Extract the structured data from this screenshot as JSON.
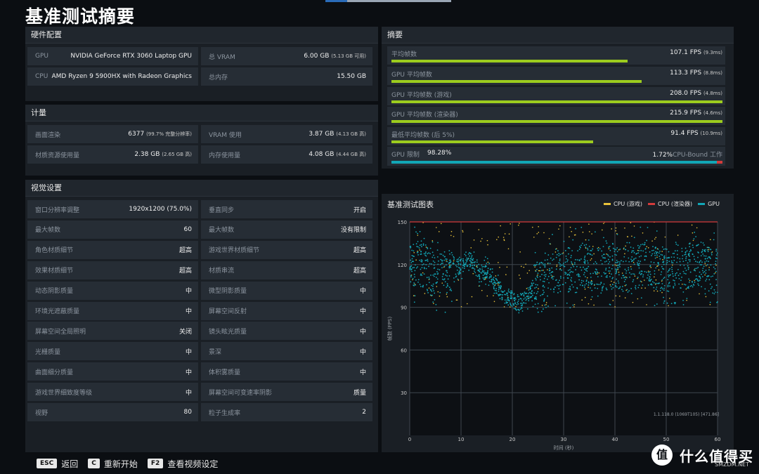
{
  "page_title": "基准测试摘要",
  "hardware": {
    "header": "硬件配置",
    "rows": [
      {
        "label": "GPU",
        "value": "NVIDIA GeForce RTX 3060 Laptop GPU",
        "label2": "总 VRAM",
        "value2": "6.00 GB",
        "value2_sub": "(5.13 GB 可用)"
      },
      {
        "label": "CPU",
        "value": "AMD Ryzen 9 5900HX with Radeon Graphics",
        "label2": "总内存",
        "value2": "15.50 GB",
        "value2_sub": ""
      }
    ]
  },
  "metrics": {
    "header": "计量",
    "rows": [
      {
        "label": "画面渲染",
        "value": "6377",
        "value_sub": "(99.7% 完整分辨率)",
        "label2": "VRAM 使用",
        "value2": "3.87 GB",
        "value2_sub": "(4.13 GB 高)"
      },
      {
        "label": "材质资源使用量",
        "value": "2.38 GB",
        "value_sub": "(2.65 GB 高)",
        "label2": "内存使用量",
        "value2": "4.08 GB",
        "value2_sub": "(4.44 GB 高)"
      }
    ]
  },
  "visual": {
    "header": "视觉设置",
    "rows": [
      {
        "label": "窗口分辨率调整",
        "value": "1920x1200 (75.0%)",
        "label2": "垂直同步",
        "value2": "开启"
      },
      {
        "label": "最大帧数",
        "value": "60",
        "label2": "最大帧数",
        "value2": "没有限制"
      },
      {
        "label": "角色材质细节",
        "value": "超高",
        "label2": "游戏世界材质细节",
        "value2": "超高"
      },
      {
        "label": "效果材质细节",
        "value": "超高",
        "label2": "材质串流",
        "value2": "超高"
      },
      {
        "label": "动态阴影质量",
        "value": "中",
        "label2": "微型阴影质量",
        "value2": "中"
      },
      {
        "label": "环境光遮蔽质量",
        "value": "中",
        "label2": "屏幕空间反射",
        "value2": "中"
      },
      {
        "label": "屏幕空间全局照明",
        "value": "关闭",
        "label2": "镜头眩光质量",
        "value2": "中"
      },
      {
        "label": "光栅质量",
        "value": "中",
        "label2": "景深",
        "value2": "中"
      },
      {
        "label": "曲面细分质量",
        "value": "中",
        "label2": "体积雾质量",
        "value2": "中"
      },
      {
        "label": "游戏世界细致度等级",
        "value": "中",
        "label2": "屏幕空间可变速率阴影",
        "value2": "质量"
      },
      {
        "label": "视野",
        "value": "80",
        "label2": "粒子生成率",
        "value2": "2"
      }
    ]
  },
  "summary": {
    "header": "摘要",
    "rows": [
      {
        "label": "平均帧数",
        "value": "107.1 FPS",
        "value_sub": "(9.3ms)",
        "fill": 0.714
      },
      {
        "label": "GPU 平均帧数",
        "value": "113.3 FPS",
        "value_sub": "(8.8ms)",
        "fill": 0.755
      },
      {
        "label": "GPU 平均帧数 (游戏)",
        "value": "208.0 FPS",
        "value_sub": "(4.8ms)",
        "fill": 1.0
      },
      {
        "label": "GPU 平均帧数 (渲染器)",
        "value": "215.9 FPS",
        "value_sub": "(4.6ms)",
        "fill": 1.0
      },
      {
        "label": "最低平均帧数 (后 5%)",
        "value": "91.4 FPS",
        "value_sub": "(10.9ms)",
        "fill": 0.609
      }
    ],
    "gpu_limit": {
      "label": "GPU 限制",
      "gpu_pct": "98.28%",
      "cpu_pct": "1.72%",
      "cpu_label": "CPU-Bound 工作",
      "gpu_fill": 0.9828,
      "gpu_color": "#12a6b6",
      "cpu_color": "#d33b3b"
    }
  },
  "chart": {
    "header": "基准测试图表",
    "legend": [
      {
        "name": "CPU (游戏)",
        "color": "#e8c23a"
      },
      {
        "name": "CPU (渲染器)",
        "color": "#d33b3b"
      },
      {
        "name": "GPU",
        "color": "#12a6b6"
      }
    ],
    "version": "1.1.118.0 (1069T105) [471.86]"
  },
  "chart_data": {
    "type": "scatter",
    "xlabel": "时间 (秒)",
    "ylabel": "帧数 (FPS)",
    "xlim": [
      0,
      60
    ],
    "ylim": [
      0,
      150
    ],
    "xticks": [
      0,
      10,
      20,
      30,
      40,
      50,
      60
    ],
    "yticks": [
      30,
      60,
      90,
      120,
      150
    ],
    "grid": true,
    "legend_position": "top-right",
    "series": [
      {
        "name": "GPU",
        "color": "#12a6b6",
        "trend": [
          [
            0,
            118
          ],
          [
            2,
            122
          ],
          [
            4,
            114
          ],
          [
            6,
            112
          ],
          [
            8,
            116
          ],
          [
            10,
            118
          ],
          [
            11,
            124
          ],
          [
            12,
            122
          ],
          [
            13,
            117
          ],
          [
            14,
            114
          ],
          [
            15,
            116
          ],
          [
            16,
            110
          ],
          [
            17,
            104
          ],
          [
            18,
            100
          ],
          [
            19,
            98
          ],
          [
            20,
            96
          ],
          [
            21,
            92
          ],
          [
            22,
            95
          ],
          [
            23,
            98
          ],
          [
            24,
            104
          ],
          [
            25,
            108
          ],
          [
            26,
            106
          ],
          [
            27,
            112
          ],
          [
            28,
            116
          ],
          [
            30,
            114
          ],
          [
            32,
            118
          ],
          [
            34,
            120
          ],
          [
            36,
            116
          ],
          [
            38,
            118
          ],
          [
            40,
            118
          ],
          [
            42,
            116
          ],
          [
            44,
            118
          ],
          [
            46,
            122
          ],
          [
            48,
            118
          ],
          [
            50,
            116
          ],
          [
            52,
            120
          ],
          [
            54,
            118
          ],
          [
            56,
            122
          ],
          [
            58,
            118
          ],
          [
            60,
            114
          ]
        ],
        "spread": 16
      },
      {
        "name": "CPU (游戏)",
        "color": "#e8c23a",
        "range": [
          90,
          150
        ]
      },
      {
        "name": "CPU (渲染器)",
        "color": "#d33b3b",
        "value": 150
      }
    ]
  },
  "bottom_bar": [
    {
      "key": "ESC",
      "label": "返回"
    },
    {
      "key": "C",
      "label": "重新开始"
    },
    {
      "key": "F2",
      "label": "查看视频设定"
    }
  ],
  "watermark": {
    "logo": "值",
    "text": "什么值得买",
    "sub": "SMZDM.NET"
  }
}
